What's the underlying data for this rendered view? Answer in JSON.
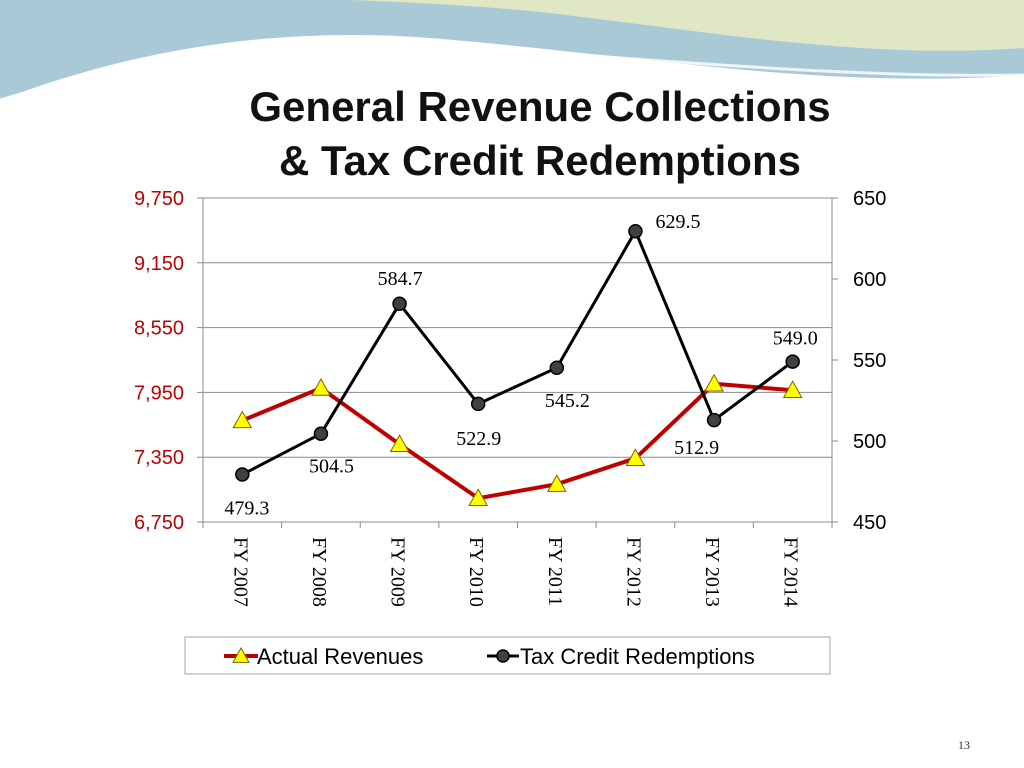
{
  "slide": {
    "page_number": "13"
  },
  "chart_data": {
    "type": "line",
    "title_lines": [
      "General Revenue Collections",
      "& Tax Credit Redemptions"
    ],
    "categories": [
      "FY 2007",
      "FY 2008",
      "FY 2009",
      "FY 2010",
      "FY 2011",
      "FY 2012",
      "FY 2013",
      "FY 2014"
    ],
    "y_left": {
      "ticks": [
        "9,750",
        "9,150",
        "8,550",
        "7,950",
        "7,350",
        "6,750"
      ],
      "min": 6750,
      "max": 9750,
      "color": "#c00000"
    },
    "y_right": {
      "ticks": [
        "650",
        "600",
        "550",
        "500",
        "450"
      ],
      "min": 450,
      "max": 650
    },
    "grid": true,
    "legend": "bottom",
    "series": [
      {
        "name": "Actual Revenues",
        "axis": "left",
        "color": "#c00000",
        "marker": "triangle",
        "marker_color": "#ffff00",
        "values": [
          7690,
          7990,
          7470,
          6970,
          7100,
          7340,
          8030,
          7970
        ]
      },
      {
        "name": "Tax Credit Redemptions",
        "axis": "right",
        "color": "#000000",
        "marker": "circle",
        "marker_color": "#404040",
        "values": [
          479.3,
          504.5,
          584.7,
          522.9,
          545.2,
          629.5,
          512.9,
          549.0
        ],
        "labels": [
          "479.3",
          "504.5",
          "584.7",
          "522.9",
          "545.2",
          "629.5",
          "512.9",
          "549.0"
        ]
      }
    ]
  }
}
